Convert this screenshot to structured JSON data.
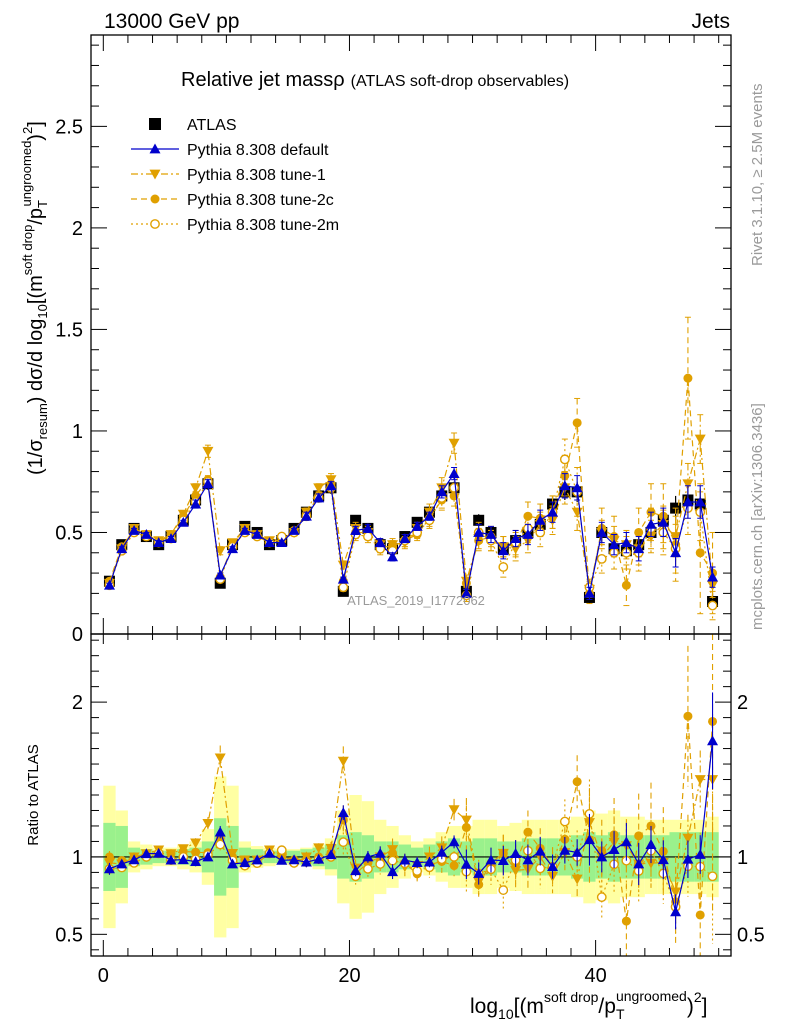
{
  "header": {
    "left": "13000 GeV pp",
    "right": "Jets"
  },
  "side_labels": {
    "rivet": "Rivet 3.1.10, ≥ 2.5M events",
    "mcplots": "mcplots.cern.ch [arXiv:1306.3436]"
  },
  "watermark": "ATLAS_2019_I1772062",
  "chart_data": {
    "type": "scatter",
    "title_main": "Relative jet massρ",
    "title_sub": "(ATLAS soft-drop observables)",
    "ylabel_parts": {
      "a": "(1/σ",
      "a_sub": "resum",
      "b": ") dσ/d log",
      "b_sub": "10",
      "c": "[(m",
      "c_sup": "soft drop",
      "d": "/p",
      "d_sub": "T",
      "d_sup": "ungroomed",
      "e": ")",
      "e_sup": "2",
      "f": "]"
    },
    "xlabel_parts": {
      "a": "log",
      "a_sub": "10",
      "b": "[(m",
      "b_sup": "soft drop",
      "c": "/p",
      "c_sub": "T",
      "c_sup": "ungroomed",
      "d": ")",
      "d_sup": "2",
      "e": "]"
    },
    "ratio_ylabel": "Ratio to ATLAS",
    "xlim": [
      -1,
      51
    ],
    "ylim_main": [
      0,
      2.95
    ],
    "ylim_ratio": [
      0.36,
      2.44
    ],
    "x_ticks": [
      "0",
      "20",
      "40"
    ],
    "y_ticks_main": [
      "0",
      "0.5",
      "1",
      "1.5",
      "2",
      "2.5"
    ],
    "y_ticks_ratio": [
      "0.5",
      "1",
      "2"
    ],
    "legend_placement": "top-left",
    "x": [
      0.5,
      1.5,
      2.5,
      3.5,
      4.5,
      5.5,
      6.5,
      7.5,
      8.5,
      9.5,
      10.5,
      11.5,
      12.5,
      13.5,
      14.5,
      15.5,
      16.5,
      17.5,
      18.5,
      19.5,
      20.5,
      21.5,
      22.5,
      23.5,
      24.5,
      25.5,
      26.5,
      27.5,
      28.5,
      29.5,
      30.5,
      31.5,
      32.5,
      33.5,
      34.5,
      35.5,
      36.5,
      37.5,
      38.5,
      39.5,
      40.5,
      41.5,
      42.5,
      43.5,
      44.5,
      45.5,
      46.5,
      47.5,
      48.5,
      49.5
    ],
    "data": {
      "name": "ATLAS",
      "y": [
        0.26,
        0.44,
        0.52,
        0.48,
        0.44,
        0.48,
        0.56,
        0.66,
        0.74,
        0.25,
        0.44,
        0.53,
        0.5,
        0.44,
        0.46,
        0.52,
        0.6,
        0.68,
        0.72,
        0.21,
        0.56,
        0.52,
        0.44,
        0.42,
        0.48,
        0.55,
        0.6,
        0.68,
        0.72,
        0.21,
        0.56,
        0.5,
        0.42,
        0.46,
        0.5,
        0.54,
        0.64,
        0.7,
        0.7,
        0.18,
        0.5,
        0.42,
        0.41,
        0.44,
        0.5,
        0.56,
        0.62,
        0.66,
        0.64,
        0.16
      ],
      "yerr": [
        0.02,
        0.02,
        0.02,
        0.02,
        0.02,
        0.02,
        0.02,
        0.02,
        0.03,
        0.02,
        0.02,
        0.02,
        0.02,
        0.02,
        0.02,
        0.02,
        0.02,
        0.03,
        0.03,
        0.02,
        0.02,
        0.02,
        0.02,
        0.02,
        0.02,
        0.02,
        0.03,
        0.03,
        0.03,
        0.02,
        0.03,
        0.03,
        0.03,
        0.03,
        0.03,
        0.03,
        0.04,
        0.04,
        0.05,
        0.03,
        0.04,
        0.04,
        0.04,
        0.05,
        0.05,
        0.05,
        0.06,
        0.06,
        0.07,
        0.04
      ]
    },
    "ratio_bands": {
      "green_halfwidth": [
        0.22,
        0.2,
        0.06,
        0.05,
        0.04,
        0.04,
        0.05,
        0.06,
        0.1,
        0.25,
        0.2,
        0.06,
        0.05,
        0.04,
        0.04,
        0.04,
        0.05,
        0.06,
        0.08,
        0.14,
        0.16,
        0.14,
        0.1,
        0.1,
        0.08,
        0.06,
        0.08,
        0.1,
        0.12,
        0.1,
        0.12,
        0.12,
        0.1,
        0.1,
        0.12,
        0.12,
        0.12,
        0.12,
        0.14,
        0.16,
        0.14,
        0.16,
        0.14,
        0.14,
        0.14,
        0.14,
        0.16,
        0.16,
        0.16,
        0.16
      ],
      "yellow_halfwidth": [
        0.46,
        0.3,
        0.1,
        0.08,
        0.06,
        0.06,
        0.08,
        0.1,
        0.18,
        0.52,
        0.46,
        0.1,
        0.07,
        0.06,
        0.05,
        0.05,
        0.06,
        0.08,
        0.12,
        0.3,
        0.4,
        0.36,
        0.24,
        0.2,
        0.14,
        0.1,
        0.12,
        0.16,
        0.2,
        0.2,
        0.24,
        0.24,
        0.2,
        0.22,
        0.24,
        0.24,
        0.24,
        0.24,
        0.26,
        0.3,
        0.28,
        0.3,
        0.26,
        0.26,
        0.24,
        0.24,
        0.24,
        0.24,
        0.24,
        0.26
      ]
    },
    "series": [
      {
        "name": "Pythia 8.308 default",
        "color": "#0000cc",
        "marker": "triangle-up",
        "line": "solid",
        "y": [
          0.24,
          0.42,
          0.51,
          0.49,
          0.45,
          0.47,
          0.55,
          0.64,
          0.74,
          0.29,
          0.42,
          0.51,
          0.49,
          0.45,
          0.45,
          0.51,
          0.58,
          0.67,
          0.73,
          0.27,
          0.51,
          0.52,
          0.45,
          0.38,
          0.47,
          0.53,
          0.58,
          0.7,
          0.79,
          0.2,
          0.5,
          0.49,
          0.41,
          0.47,
          0.49,
          0.56,
          0.6,
          0.73,
          0.72,
          0.2,
          0.5,
          0.44,
          0.45,
          0.42,
          0.54,
          0.55,
          0.4,
          0.65,
          0.65,
          0.28
        ],
        "yerr": [
          0.01,
          0.01,
          0.01,
          0.01,
          0.01,
          0.01,
          0.01,
          0.02,
          0.02,
          0.01,
          0.01,
          0.01,
          0.01,
          0.01,
          0.01,
          0.01,
          0.02,
          0.02,
          0.02,
          0.01,
          0.02,
          0.02,
          0.02,
          0.02,
          0.02,
          0.02,
          0.02,
          0.03,
          0.03,
          0.02,
          0.04,
          0.04,
          0.04,
          0.04,
          0.05,
          0.05,
          0.05,
          0.06,
          0.06,
          0.03,
          0.05,
          0.05,
          0.05,
          0.06,
          0.06,
          0.07,
          0.07,
          0.08,
          0.08,
          0.05
        ]
      },
      {
        "name": "Pythia 8.308 tune-1",
        "color": "#e0a000",
        "marker": "triangle-down",
        "line": "dashdot",
        "y": [
          0.25,
          0.42,
          0.52,
          0.49,
          0.46,
          0.49,
          0.59,
          0.72,
          0.9,
          0.41,
          0.45,
          0.52,
          0.49,
          0.46,
          0.46,
          0.5,
          0.6,
          0.72,
          0.76,
          0.34,
          0.52,
          0.5,
          0.44,
          0.44,
          0.45,
          0.52,
          0.6,
          0.72,
          0.94,
          0.26,
          0.47,
          0.46,
          0.43,
          0.42,
          0.46,
          0.54,
          0.56,
          0.72,
          0.6,
          0.22,
          0.5,
          0.46,
          0.44,
          0.42,
          0.48,
          0.54,
          0.48,
          0.74,
          0.96,
          0.24
        ],
        "yerr": [
          0.01,
          0.01,
          0.01,
          0.01,
          0.01,
          0.01,
          0.01,
          0.02,
          0.03,
          0.02,
          0.01,
          0.01,
          0.01,
          0.01,
          0.01,
          0.01,
          0.02,
          0.02,
          0.03,
          0.02,
          0.03,
          0.03,
          0.03,
          0.03,
          0.03,
          0.03,
          0.04,
          0.05,
          0.05,
          0.03,
          0.05,
          0.05,
          0.05,
          0.06,
          0.06,
          0.06,
          0.07,
          0.08,
          0.09,
          0.04,
          0.06,
          0.07,
          0.07,
          0.08,
          0.08,
          0.09,
          0.1,
          0.1,
          0.12,
          0.06
        ]
      },
      {
        "name": "Pythia 8.308 tune-2c",
        "color": "#e0a000",
        "marker": "circle",
        "line": "dashed",
        "y": [
          0.26,
          0.43,
          0.52,
          0.49,
          0.45,
          0.49,
          0.58,
          0.68,
          0.76,
          0.28,
          0.44,
          0.52,
          0.48,
          0.45,
          0.46,
          0.51,
          0.59,
          0.68,
          0.74,
          0.26,
          0.5,
          0.5,
          0.43,
          0.43,
          0.46,
          0.49,
          0.57,
          0.66,
          0.68,
          0.25,
          0.46,
          0.48,
          0.43,
          0.44,
          0.58,
          0.57,
          0.6,
          0.78,
          1.04,
          0.2,
          0.52,
          0.48,
          0.24,
          0.5,
          0.6,
          0.58,
          0.44,
          1.26,
          0.4,
          0.3
        ],
        "yerr": [
          0.01,
          0.01,
          0.01,
          0.01,
          0.01,
          0.01,
          0.02,
          0.02,
          0.02,
          0.01,
          0.01,
          0.01,
          0.01,
          0.01,
          0.01,
          0.01,
          0.02,
          0.02,
          0.02,
          0.02,
          0.03,
          0.03,
          0.03,
          0.03,
          0.03,
          0.03,
          0.04,
          0.05,
          0.05,
          0.03,
          0.05,
          0.05,
          0.05,
          0.06,
          0.07,
          0.07,
          0.08,
          0.1,
          0.12,
          0.05,
          0.1,
          0.1,
          0.1,
          0.12,
          0.14,
          0.16,
          0.18,
          0.3,
          0.3,
          0.2
        ]
      },
      {
        "name": "Pythia 8.308 tune-2m",
        "color": "#e0a000",
        "marker": "circle-open",
        "line": "dotted",
        "y": [
          0.24,
          0.41,
          0.5,
          0.48,
          0.45,
          0.47,
          0.56,
          0.65,
          0.75,
          0.27,
          0.43,
          0.5,
          0.48,
          0.45,
          0.48,
          0.5,
          0.58,
          0.67,
          0.72,
          0.23,
          0.49,
          0.48,
          0.42,
          0.41,
          0.46,
          0.5,
          0.56,
          0.67,
          0.72,
          0.19,
          0.5,
          0.46,
          0.33,
          0.45,
          0.52,
          0.5,
          0.6,
          0.86,
          0.7,
          0.23,
          0.37,
          0.4,
          0.4,
          0.4,
          0.52,
          0.5,
          0.42,
          0.62,
          0.6,
          0.14
        ],
        "yerr": [
          0.01,
          0.01,
          0.01,
          0.01,
          0.01,
          0.01,
          0.01,
          0.02,
          0.02,
          0.01,
          0.01,
          0.01,
          0.01,
          0.01,
          0.01,
          0.01,
          0.02,
          0.02,
          0.02,
          0.02,
          0.03,
          0.03,
          0.03,
          0.03,
          0.03,
          0.03,
          0.04,
          0.05,
          0.05,
          0.03,
          0.05,
          0.05,
          0.05,
          0.06,
          0.07,
          0.07,
          0.08,
          0.1,
          0.12,
          0.04,
          0.07,
          0.08,
          0.08,
          0.09,
          0.1,
          0.11,
          0.12,
          0.13,
          0.14,
          0.07
        ]
      }
    ]
  }
}
